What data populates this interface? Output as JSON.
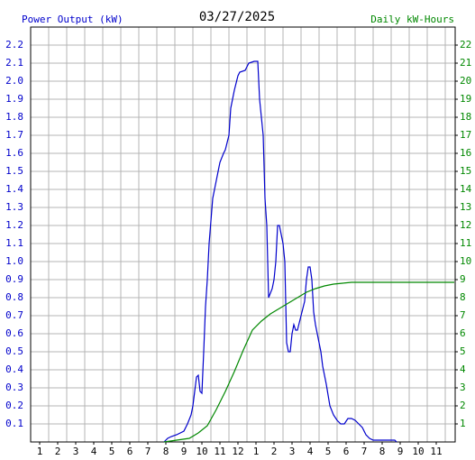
{
  "chart_data": {
    "type": "line",
    "title": "03/27/2025",
    "ylabel": "Power Output (kW)",
    "y2label": "Daily kW-Hours",
    "ylabel_color": "#0000cc",
    "y2label_color": "#008800",
    "grid": true,
    "xlim": [
      0.5,
      24.05
    ],
    "xgrid": [
      1.5,
      2.5,
      3.5,
      4.5,
      5.5,
      6.5,
      7.5,
      8.5,
      9.5,
      10.5,
      11.5,
      12.5,
      13.5,
      14.5,
      15.5,
      16.5,
      17.5,
      18.5,
      19.5,
      20.5,
      21.5,
      22.5,
      23.5
    ],
    "xticks": [
      1,
      2,
      3,
      4,
      5,
      6,
      7,
      8,
      9,
      10,
      11,
      12,
      {
        "value": 13,
        "label": "1"
      },
      {
        "value": 14,
        "label": "2"
      },
      {
        "value": 15,
        "label": "3"
      },
      {
        "value": 16,
        "label": "4"
      },
      {
        "value": 17,
        "label": "5"
      },
      {
        "value": 18,
        "label": "6"
      },
      {
        "value": 19,
        "label": "7"
      },
      {
        "value": 20,
        "label": "8"
      },
      {
        "value": 21,
        "label": "9"
      },
      {
        "value": 22,
        "label": "10"
      },
      {
        "value": 23,
        "label": "11"
      }
    ],
    "ylim": [
      0,
      2.3
    ],
    "yticks": [
      0.1,
      0.2,
      0.3,
      0.4,
      0.5,
      0.6,
      0.7,
      0.8,
      0.9,
      {
        "value": 1,
        "label": "1.0"
      },
      1.1,
      1.2,
      1.3,
      1.4,
      1.5,
      1.6,
      1.7,
      1.8,
      1.9,
      {
        "value": 2,
        "label": "2.0"
      },
      2.1,
      2.2
    ],
    "y2lim": [
      0,
      23
    ],
    "y2ticks": [
      1,
      2,
      3,
      4,
      5,
      6,
      7,
      8,
      9,
      10,
      11,
      12,
      13,
      14,
      15,
      16,
      17,
      18,
      19,
      20,
      21,
      22
    ],
    "series": [
      {
        "color": "#0000cc",
        "x": [
          7.9,
          8.1,
          8.3,
          8.6,
          9.0,
          9.2,
          9.4,
          9.5,
          9.6,
          9.7,
          9.8,
          9.9,
          10.0,
          10.1,
          10.2,
          10.3,
          10.4,
          10.6,
          10.8,
          10.9,
          11.0,
          11.2,
          11.3,
          11.5,
          11.6,
          11.8,
          12.0,
          12.1,
          12.4,
          12.6,
          12.9,
          13.1,
          13.2,
          13.4,
          13.5,
          13.6,
          13.7,
          13.9,
          14.0,
          14.1,
          14.2,
          14.3,
          14.4,
          14.5,
          14.6,
          14.7,
          14.8,
          14.9,
          15.0,
          15.1,
          15.2,
          15.3,
          15.5,
          15.7,
          15.8,
          15.9,
          16.0,
          16.1,
          16.2,
          16.3,
          16.5,
          16.6,
          16.7,
          16.9,
          17.1,
          17.3,
          17.5,
          17.7,
          17.9,
          18.1,
          18.3,
          18.5,
          18.7,
          18.9,
          19.1,
          19.3,
          19.5,
          19.8,
          20.3,
          20.7,
          20.8
        ],
        "values": [
          0,
          0.02,
          0.03,
          0.04,
          0.06,
          0.1,
          0.15,
          0.2,
          0.28,
          0.36,
          0.37,
          0.28,
          0.27,
          0.5,
          0.75,
          0.9,
          1.1,
          1.35,
          1.45,
          1.5,
          1.55,
          1.6,
          1.62,
          1.7,
          1.85,
          1.95,
          2.03,
          2.05,
          2.06,
          2.1,
          2.11,
          2.11,
          1.9,
          1.7,
          1.35,
          1.2,
          0.8,
          0.85,
          0.9,
          1.0,
          1.2,
          1.2,
          1.15,
          1.1,
          1.0,
          0.55,
          0.5,
          0.5,
          0.6,
          0.65,
          0.62,
          0.62,
          0.7,
          0.78,
          0.9,
          0.97,
          0.97,
          0.9,
          0.72,
          0.65,
          0.55,
          0.5,
          0.42,
          0.32,
          0.2,
          0.15,
          0.12,
          0.1,
          0.1,
          0.13,
          0.13,
          0.12,
          0.1,
          0.08,
          0.04,
          0.02,
          0.01,
          0.01,
          0.01,
          0.01,
          0
        ]
      },
      {
        "color": "#008800",
        "axis": "y2",
        "x": [
          7.9,
          9.3,
          9.8,
          10.3,
          10.8,
          11.3,
          11.8,
          12.3,
          12.8,
          13.3,
          13.8,
          14.3,
          14.8,
          15.3,
          15.8,
          16.3,
          16.8,
          17.3,
          17.8,
          18.3,
          18.8,
          20.8,
          24.0
        ],
        "values": [
          0,
          0.2,
          0.5,
          0.9,
          1.8,
          2.8,
          3.9,
          5.1,
          6.2,
          6.7,
          7.1,
          7.4,
          7.7,
          8.0,
          8.3,
          8.5,
          8.65,
          8.75,
          8.8,
          8.85,
          8.85,
          8.85,
          8.85
        ]
      }
    ]
  }
}
